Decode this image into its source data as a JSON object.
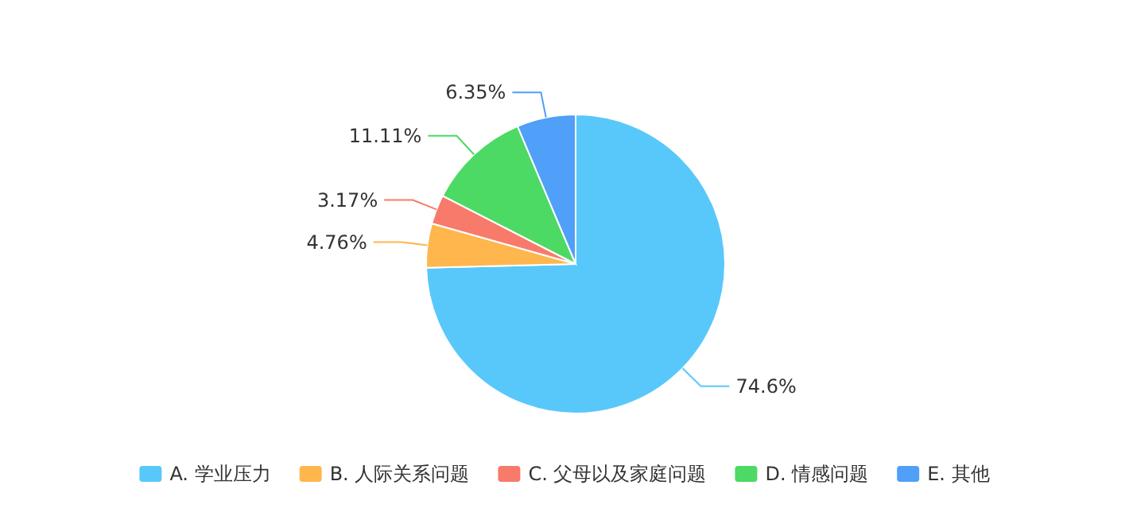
{
  "chart_data": {
    "type": "pie",
    "categories": [
      "A. 学业压力",
      "B. 人际关系问题",
      "C. 父母以及家庭问题",
      "D. 情感问题",
      "E. 其他"
    ],
    "values": [
      74.6,
      4.76,
      3.17,
      11.11,
      6.35
    ],
    "colors": [
      "#58c8fb",
      "#ffb64d",
      "#f87a6b",
      "#4cd964",
      "#509ff8"
    ],
    "value_labels": [
      "74.6%",
      "4.76%",
      "3.17%",
      "11.11%",
      "6.35%"
    ],
    "legend": "bottom"
  }
}
